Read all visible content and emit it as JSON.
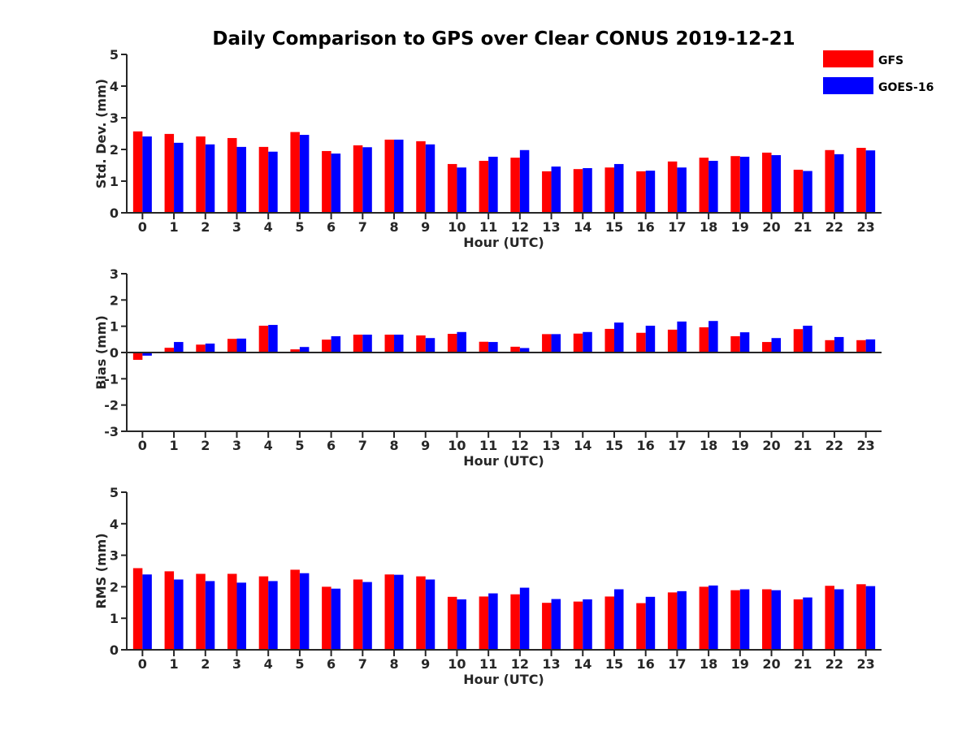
{
  "title": "Daily Comparison to GPS over Clear CONUS 2019-12-21",
  "legend": [
    {
      "name": "GFS",
      "color": "#ff0000"
    },
    {
      "name": "GOES-16",
      "color": "#0000ff"
    }
  ],
  "chart_data": [
    {
      "type": "bar",
      "title": "Daily Comparison to GPS over Clear CONUS 2019-12-21",
      "xlabel": "Hour (UTC)",
      "ylabel": "Std. Dev. (mm)",
      "ylim": [
        0,
        5
      ],
      "yticks": [
        0,
        1,
        2,
        3,
        4,
        5
      ],
      "categories": [
        "0",
        "1",
        "2",
        "3",
        "4",
        "5",
        "6",
        "7",
        "8",
        "9",
        "10",
        "11",
        "12",
        "13",
        "14",
        "15",
        "16",
        "17",
        "18",
        "19",
        "20",
        "21",
        "22",
        "23"
      ],
      "series": [
        {
          "name": "GFS",
          "color": "#ff0000",
          "values": [
            2.57,
            2.49,
            2.41,
            2.36,
            2.08,
            2.55,
            1.95,
            2.13,
            2.31,
            2.26,
            1.54,
            1.64,
            1.74,
            1.31,
            1.38,
            1.43,
            1.31,
            1.62,
            1.74,
            1.79,
            1.9,
            1.36,
            1.98,
            2.05
          ]
        },
        {
          "name": "GOES-16",
          "color": "#0000ff",
          "values": [
            2.41,
            2.21,
            2.16,
            2.08,
            1.93,
            2.46,
            1.87,
            2.07,
            2.31,
            2.16,
            1.43,
            1.77,
            1.98,
            1.46,
            1.41,
            1.54,
            1.33,
            1.43,
            1.64,
            1.77,
            1.82,
            1.32,
            1.85,
            1.97
          ]
        }
      ]
    },
    {
      "type": "bar",
      "xlabel": "Hour (UTC)",
      "ylabel": "Bias (mm)",
      "ylim": [
        -3,
        3
      ],
      "yticks": [
        -3,
        -2,
        -1,
        0,
        1,
        2,
        3
      ],
      "categories": [
        "0",
        "1",
        "2",
        "3",
        "4",
        "5",
        "6",
        "7",
        "8",
        "9",
        "10",
        "11",
        "12",
        "13",
        "14",
        "15",
        "16",
        "17",
        "18",
        "19",
        "20",
        "21",
        "22",
        "23"
      ],
      "series": [
        {
          "name": "GFS",
          "color": "#ff0000",
          "values": [
            -0.28,
            0.18,
            0.3,
            0.52,
            1.02,
            0.12,
            0.49,
            0.68,
            0.68,
            0.65,
            0.71,
            0.41,
            0.22,
            0.7,
            0.72,
            0.9,
            0.75,
            0.87,
            0.96,
            0.62,
            0.4,
            0.89,
            0.47,
            0.47
          ]
        },
        {
          "name": "GOES-16",
          "color": "#0000ff",
          "values": [
            -0.12,
            0.4,
            0.34,
            0.53,
            1.05,
            0.21,
            0.62,
            0.68,
            0.68,
            0.55,
            0.78,
            0.4,
            0.17,
            0.7,
            0.78,
            1.14,
            1.02,
            1.18,
            1.2,
            0.77,
            0.55,
            1.02,
            0.59,
            0.5
          ]
        }
      ]
    },
    {
      "type": "bar",
      "xlabel": "Hour (UTC)",
      "ylabel": "RMS (mm)",
      "ylim": [
        0,
        5
      ],
      "yticks": [
        0,
        1,
        2,
        3,
        4,
        5
      ],
      "categories": [
        "0",
        "1",
        "2",
        "3",
        "4",
        "5",
        "6",
        "7",
        "8",
        "9",
        "10",
        "11",
        "12",
        "13",
        "14",
        "15",
        "16",
        "17",
        "18",
        "19",
        "20",
        "21",
        "22",
        "23"
      ],
      "series": [
        {
          "name": "GFS",
          "color": "#ff0000",
          "values": [
            2.59,
            2.49,
            2.41,
            2.41,
            2.33,
            2.54,
            2.0,
            2.23,
            2.39,
            2.33,
            1.68,
            1.69,
            1.76,
            1.49,
            1.53,
            1.69,
            1.48,
            1.82,
            2.0,
            1.89,
            1.92,
            1.6,
            2.03,
            2.08
          ]
        },
        {
          "name": "GOES-16",
          "color": "#0000ff",
          "values": [
            2.39,
            2.23,
            2.18,
            2.13,
            2.18,
            2.43,
            1.94,
            2.15,
            2.38,
            2.23,
            1.6,
            1.79,
            1.97,
            1.61,
            1.6,
            1.92,
            1.68,
            1.86,
            2.04,
            1.92,
            1.89,
            1.66,
            1.92,
            2.02
          ]
        }
      ]
    }
  ]
}
